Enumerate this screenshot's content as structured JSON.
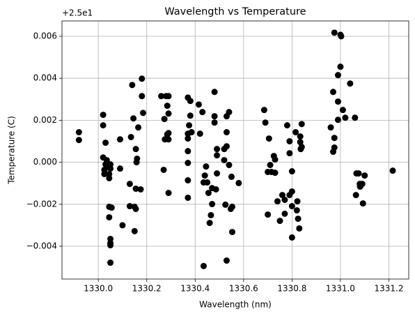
{
  "chart_data": {
    "type": "scatter",
    "title": "Wavelength vs Temperature",
    "x_label": "Wavelength (nm)",
    "y_label": "Temperature (C)",
    "y_offset_text": "+2.5e1",
    "color": "#000000",
    "grid": true,
    "xlim": [
      1329.85,
      1331.282
    ],
    "ylim": [
      -0.00556,
      0.00673
    ],
    "xticks": [
      {
        "value": 1330,
        "label": "1330.0"
      },
      1330.2,
      1330.4,
      1330.6,
      1330.8,
      {
        "value": 1331,
        "label": "1331.0"
      },
      1331.2
    ],
    "yticks": [
      {
        "value": -0.004,
        "label": "−0.004"
      },
      {
        "value": -0.002,
        "label": "−0.002"
      },
      {
        "value": 0,
        "label": "0.000"
      },
      0.002,
      0.004,
      0.006
    ],
    "x": [
      1329.92,
      1329.92,
      1330.02,
      1330.02,
      1330.03,
      1330.02,
      1330.035,
      1330.03,
      1330.04,
      1330.025,
      1330.025,
      1330.045,
      1330.045,
      1330.05,
      1330.05,
      1330.045,
      1330.055,
      1330.045,
      1330.05,
      1330.05,
      1330.05,
      1330.05,
      1330.09,
      1330.09,
      1330.1,
      1330.13,
      1330.13,
      1330.135,
      1330.14,
      1330.145,
      1330.15,
      1330.155,
      1330.15,
      1330.155,
      1330.155,
      1330.158,
      1330.16,
      1330.165,
      1330.18,
      1330.18,
      1330.185,
      1330.175,
      1330.26,
      1330.27,
      1330.273,
      1330.28,
      1330.29,
      1330.285,
      1330.29,
      1330.275,
      1330.285,
      1330.29,
      1330.29,
      1330.29,
      1330.37,
      1330.38,
      1330.38,
      1330.375,
      1330.37,
      1330.37,
      1330.37,
      1330.37,
      1330.37,
      1330.37,
      1330.385,
      1330.415,
      1330.43,
      1330.42,
      1330.435,
      1330.435,
      1330.44,
      1330.445,
      1330.45,
      1330.455,
      1330.46,
      1330.465,
      1330.47,
      1330.47,
      1330.48,
      1330.48,
      1330.48,
      1330.49,
      1330.49,
      1330.49,
      1330.486,
      1330.52,
      1330.52,
      1330.53,
      1330.53,
      1330.53,
      1330.525,
      1330.53,
      1330.54,
      1330.54,
      1330.55,
      1330.553,
      1330.547,
      1330.553,
      1330.58,
      1330.685,
      1330.69,
      1330.7,
      1330.7,
      1330.705,
      1330.71,
      1330.715,
      1330.725,
      1330.73,
      1330.73,
      1330.74,
      1330.75,
      1330.76,
      1330.77,
      1330.77,
      1330.78,
      1330.79,
      1330.79,
      1330.79,
      1330.8,
      1330.8,
      1330.8,
      1330.8,
      1330.815,
      1330.82,
      1330.822,
      1330.825,
      1330.834,
      1330.834,
      1330.836,
      1330.84,
      1330.83,
      1330.84,
      1330.96,
      1330.97,
      1330.975,
      1330.99,
      1330.99,
      1330.99,
      1331.0,
      1331.003,
      1331.0,
      1331.01,
      1331.02,
      1331.04,
      1330.975,
      1330.975,
      1330.97,
      1331.06,
      1331.066,
      1331.075,
      1331.064,
      1331.08,
      1331.085,
      1331.081,
      1331.09,
      1331.093,
      1331.1,
      1331.216
    ],
    "values": [
      0.00143,
      0.00106,
      0.00226,
      0.00176,
      0.00093,
      0.00023,
      0.0001,
      -0.0001,
      -0.00023,
      -0.00036,
      -0.00056,
      -0.00056,
      -0.00076,
      -0.0001,
      -0.0003,
      -0.00212,
      -0.00216,
      -0.00262,
      -0.00365,
      -0.00385,
      -0.00395,
      -0.00478,
      0.00109,
      -0.0003,
      -0.003,
      -0.00103,
      -0.00209,
      0.0012,
      0.00368,
      0.00209,
      -0.00212,
      -0.00222,
      -0.00328,
      -0.00126,
      0.00063,
      0,
      0.00017,
      0.00166,
      0.00398,
      0.00315,
      0.00235,
      -0.00129,
      0.00315,
      -0.00036,
      0.00206,
      0.00315,
      0.00315,
      0.00269,
      0.00232,
      0.00109,
      0.00133,
      0.00139,
      0.00109,
      -0.00146,
      0.00308,
      0.00292,
      0.00222,
      0.00176,
      0.00136,
      0.00113,
      0.00053,
      -3e-05,
      -0.00086,
      -0.00169,
      0.00143,
      0.00275,
      0.00239,
      0.00136,
      -0.00096,
      -0.00494,
      -0.00063,
      -0.0002,
      -0.00096,
      -0.00146,
      -0.00289,
      -0.00252,
      -0.00199,
      -0.00123,
      0.00189,
      0.00219,
      0.00335,
      0.00063,
      0.00033,
      -0.00053,
      -0.00129,
      0.00063,
      0.0001,
      0.00219,
      0.00143,
      0.00076,
      -0.00202,
      -0.00468,
      0.00239,
      -0.00013,
      -0.00069,
      -0.00212,
      -0.00222,
      -0.00332,
      -0.00099,
      0.00249,
      0.00189,
      -0.00046,
      -0.00249,
      0.00113,
      -0.00013,
      -0.00046,
      0.0003,
      0.00013,
      -0.0005,
      -0.00186,
      -0.00279,
      -0.00156,
      -0.00179,
      -0.00245,
      0.00176,
      0.001,
      -0.00156,
      0.00043,
      -0.00139,
      -0.00043,
      -0.00209,
      -0.00358,
      0.00143,
      -0.00229,
      -0.00186,
      -0.00269,
      0.00096,
      0.00123,
      0.00063,
      0.00182,
      -0.00315,
      0.00073,
      0.00166,
      0.00335,
      0.00617,
      0.00415,
      0.00289,
      0.00202,
      0.00607,
      0.006,
      0.00455,
      0.00249,
      0.00212,
      0.00375,
      0.00116,
      0.0007,
      0.0005,
      0.00212,
      -0.00053,
      -0.00053,
      -0.00156,
      -0.00103,
      -0.00109,
      -0.00116,
      -0.00103,
      -0.00196,
      -0.00063,
      -0.0004
    ]
  }
}
